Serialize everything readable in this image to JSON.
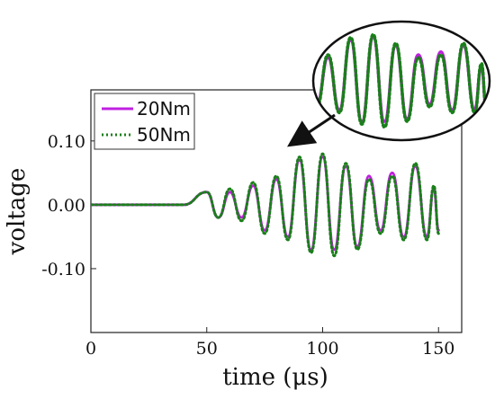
{
  "chart_data": {
    "type": "line",
    "title": "",
    "xlabel": "time (μs)",
    "ylabel": "voltage",
    "xlim": [
      0,
      160
    ],
    "ylim": [
      -0.2,
      0.18
    ],
    "x_ticks": [
      0,
      50,
      100,
      150
    ],
    "x_tick_labels": [
      "0",
      "50",
      "100",
      "150"
    ],
    "y_ticks": [
      0.1,
      0.0,
      -0.1
    ],
    "y_tick_labels": [
      "0.10",
      "0.00",
      "-0.10"
    ],
    "grid": false,
    "legend_position": "top-left",
    "inset": "magnified view of 75–150 μs",
    "series": [
      {
        "name": "20Nm",
        "color": "#c020e0",
        "style": "solid",
        "peaks": [
          [
            40,
            0.0
          ],
          [
            50,
            0.02
          ],
          [
            55,
            -0.02
          ],
          [
            60,
            0.02
          ],
          [
            65,
            -0.02
          ],
          [
            70,
            0.03
          ],
          [
            75,
            -0.04
          ],
          [
            80,
            0.04
          ],
          [
            85,
            -0.05
          ],
          [
            90,
            0.07
          ],
          [
            95,
            -0.07
          ],
          [
            100,
            0.075
          ],
          [
            105,
            -0.07
          ],
          [
            110,
            0.06
          ],
          [
            115,
            -0.065
          ],
          [
            120,
            0.045
          ],
          [
            125,
            -0.04
          ],
          [
            130,
            0.05
          ],
          [
            135,
            -0.05
          ],
          [
            140,
            0.06
          ],
          [
            145,
            -0.05
          ],
          [
            148,
            0.025
          ],
          [
            150,
            -0.04
          ]
        ]
      },
      {
        "name": "50Nm",
        "color": "#1a7f1a",
        "style": "dotted",
        "peaks": [
          [
            40,
            0.0
          ],
          [
            50,
            0.02
          ],
          [
            55,
            -0.02
          ],
          [
            60,
            0.025
          ],
          [
            65,
            -0.025
          ],
          [
            70,
            0.035
          ],
          [
            75,
            -0.045
          ],
          [
            80,
            0.045
          ],
          [
            85,
            -0.055
          ],
          [
            90,
            0.075
          ],
          [
            95,
            -0.075
          ],
          [
            100,
            0.08
          ],
          [
            105,
            -0.08
          ],
          [
            110,
            0.065
          ],
          [
            115,
            -0.07
          ],
          [
            120,
            0.04
          ],
          [
            125,
            -0.045
          ],
          [
            130,
            0.045
          ],
          [
            135,
            -0.055
          ],
          [
            140,
            0.065
          ],
          [
            145,
            -0.055
          ],
          [
            148,
            0.03
          ],
          [
            150,
            -0.045
          ]
        ]
      }
    ]
  }
}
